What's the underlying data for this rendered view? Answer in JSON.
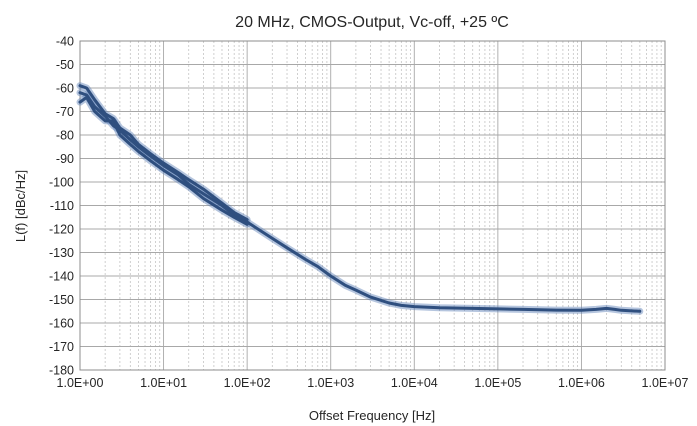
{
  "chart_data": {
    "type": "line",
    "title": "20 MHz, CMOS-Output, Vc-off, +25 ºC",
    "xlabel": "Offset Frequency [Hz]",
    "ylabel": "L(f) [dBc/Hz]",
    "x_scale": "log",
    "xlim": [
      1,
      10000000
    ],
    "ylim": [
      -180,
      -40
    ],
    "x_tick_values": [
      1,
      10,
      100,
      1000,
      10000,
      100000,
      1000000,
      10000000
    ],
    "x_tick_labels": [
      "1.0E+00",
      "1.0E+01",
      "1.0E+02",
      "1.0E+03",
      "1.0E+04",
      "1.0E+05",
      "1.0E+06",
      "1.0E+07"
    ],
    "y_tick_values": [
      -40,
      -50,
      -60,
      -70,
      -80,
      -90,
      -100,
      -110,
      -120,
      -130,
      -140,
      -150,
      -160,
      -170,
      -180
    ],
    "y_tick_labels": [
      "-40",
      "-50",
      "-60",
      "-70",
      "-80",
      "-90",
      "-100",
      "-110",
      "-120",
      "-130",
      "-140",
      "-150",
      "-160",
      "-170",
      "-180"
    ],
    "grid": true,
    "minor_grid_x": true,
    "line_color": "#2f4f7f",
    "band_color": "#5b7fb5",
    "series": [
      {
        "x": [
          1,
          1.2,
          1.5,
          2,
          2.5,
          3,
          4,
          5,
          7,
          10,
          15,
          20,
          30,
          50,
          70,
          100,
          200,
          300,
          500,
          700,
          1000,
          1500,
          2000,
          3000,
          5000,
          7000,
          10000,
          20000,
          50000,
          100000,
          200000,
          500000,
          1000000,
          1500000,
          2000000,
          2500000,
          3000000,
          5000000
        ],
        "y": [
          -62,
          -63,
          -68,
          -72,
          -76,
          -78,
          -82,
          -85,
          -89,
          -93,
          -97,
          -101,
          -105,
          -110,
          -114,
          -117,
          -124,
          -128,
          -133,
          -136,
          -140,
          -144,
          -146,
          -149,
          -151.5,
          -152.5,
          -153,
          -153.5,
          -153.8,
          -154,
          -154.2,
          -154.5,
          -154.6,
          -154.2,
          -153.8,
          -154.2,
          -154.6,
          -155
        ]
      },
      {
        "x": [
          1,
          1.2,
          1.5,
          2,
          2.5,
          3,
          4,
          5,
          7,
          10,
          15,
          20,
          30,
          50,
          70,
          100
        ],
        "y": [
          -66,
          -64,
          -70,
          -74,
          -74,
          -80,
          -84,
          -87,
          -91,
          -95,
          -99,
          -102,
          -107,
          -112,
          -115,
          -118
        ]
      },
      {
        "x": [
          1,
          1.2,
          1.5,
          2,
          2.5,
          3,
          4,
          5,
          7,
          10,
          15,
          20,
          30,
          50,
          70,
          100
        ],
        "y": [
          -59,
          -60,
          -65,
          -71,
          -73,
          -77,
          -80,
          -84,
          -88,
          -92,
          -96,
          -99,
          -103,
          -109,
          -113,
          -116
        ]
      }
    ]
  }
}
